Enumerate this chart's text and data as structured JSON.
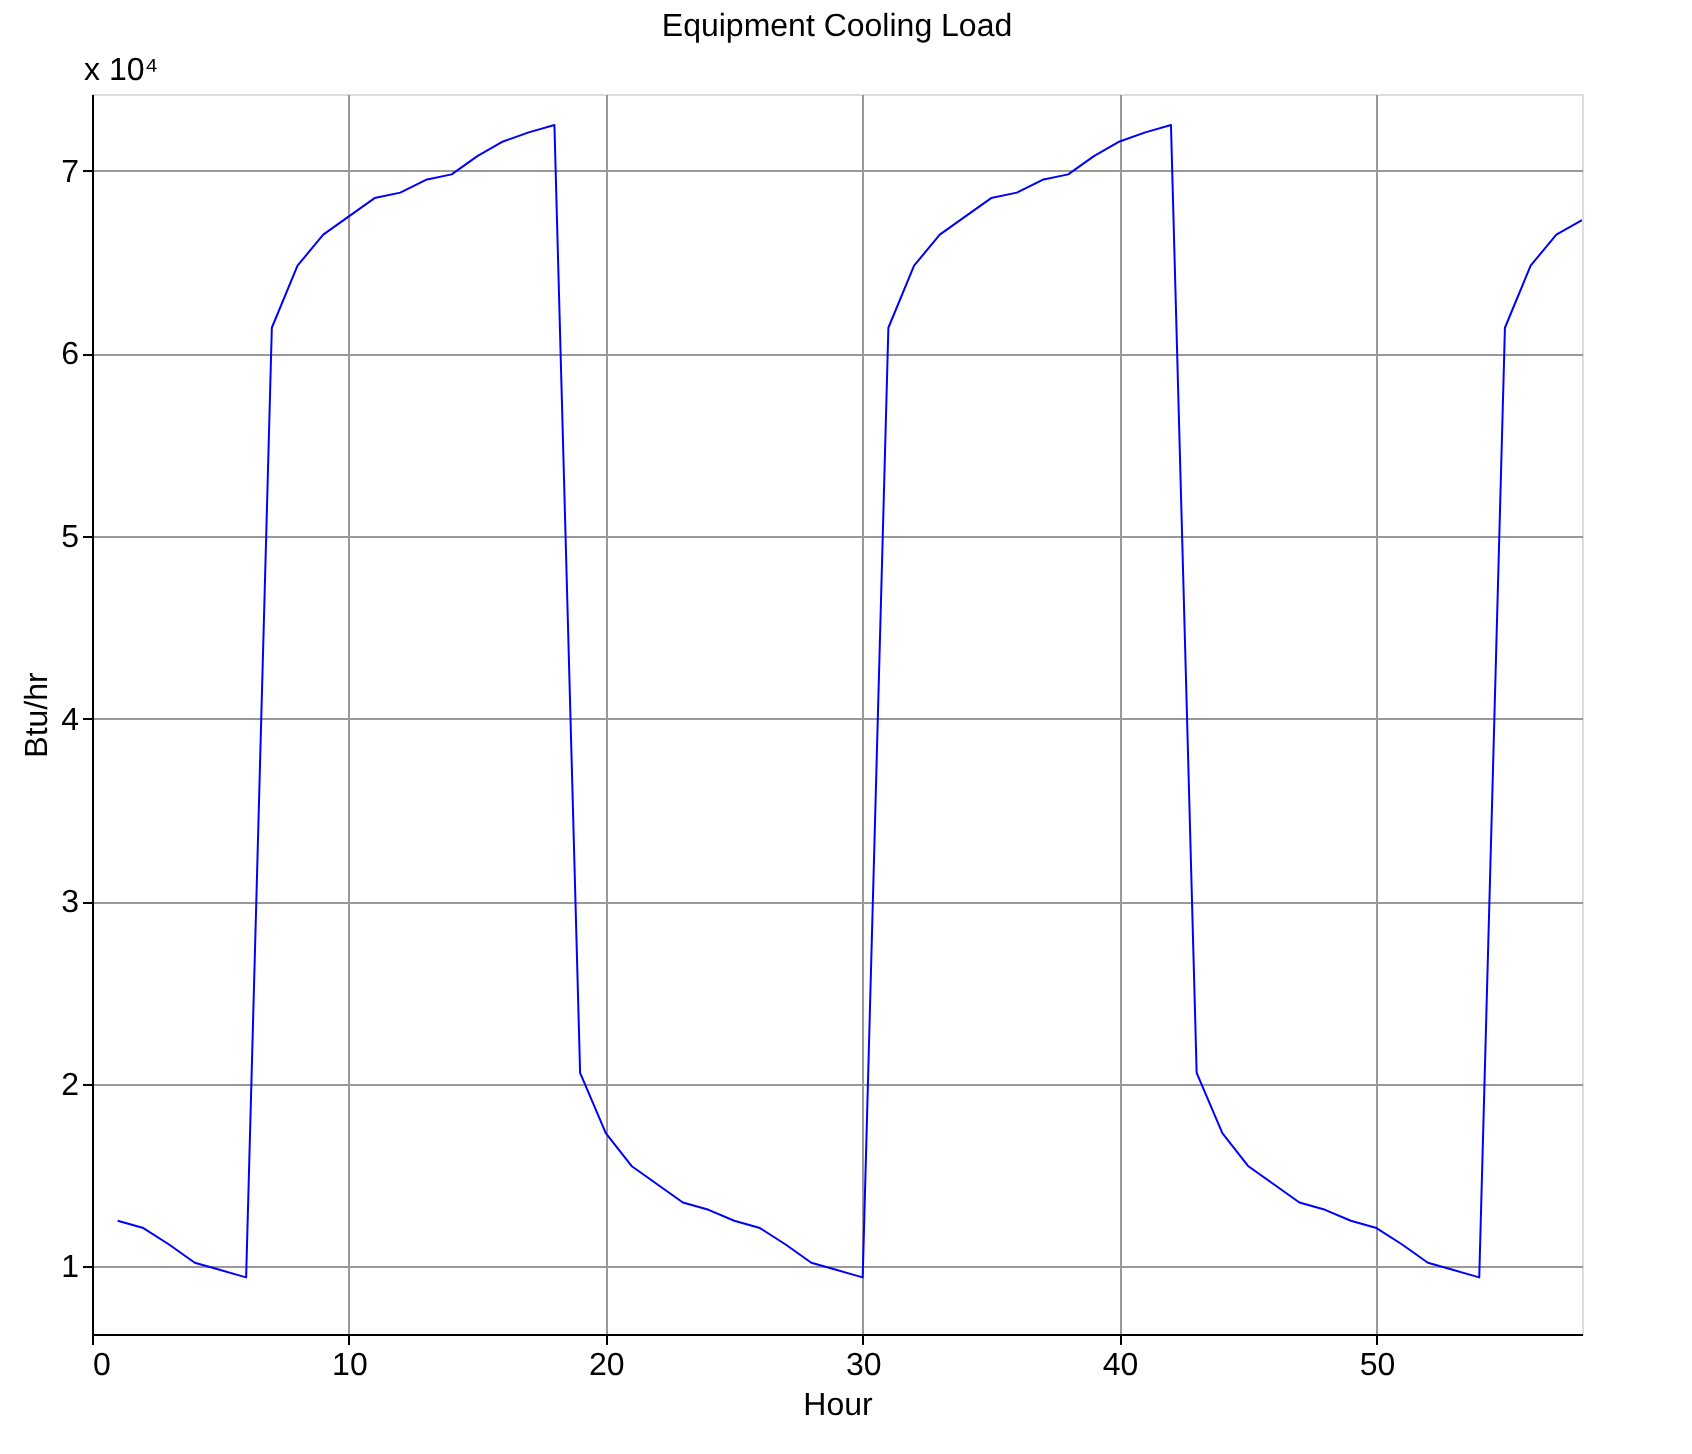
{
  "chart_data": {
    "type": "line",
    "title": "Equipment Cooling Load",
    "xlabel": "Hour",
    "ylabel": "Btu/hr",
    "annotations": [
      "x 10⁴"
    ],
    "x": [
      1,
      2,
      3,
      4,
      5,
      6,
      7,
      8,
      9,
      10,
      11,
      12,
      13,
      14,
      15,
      16,
      17,
      18,
      19,
      20,
      21,
      22,
      23,
      24,
      25,
      26,
      27,
      28,
      29,
      30,
      31,
      32,
      33,
      34,
      35,
      36,
      37,
      38,
      39,
      40,
      41,
      42,
      43,
      44,
      45,
      46,
      47,
      48,
      49,
      50,
      51,
      52,
      53,
      54,
      55,
      56,
      57,
      58
    ],
    "series": [
      {
        "color": "#0000ff",
        "values": [
          1.25,
          1.21,
          1.12,
          1.02,
          0.98,
          0.94,
          6.14,
          6.48,
          6.65,
          6.75,
          6.85,
          6.88,
          6.95,
          6.98,
          7.08,
          7.16,
          7.21,
          7.25,
          2.06,
          1.73,
          1.55,
          1.45,
          1.35,
          1.31,
          1.25,
          1.21,
          1.12,
          1.02,
          0.98,
          0.94,
          6.14,
          6.48,
          6.65,
          6.75,
          6.85,
          6.88,
          6.95,
          6.98,
          7.08,
          7.16,
          7.21,
          7.25,
          2.06,
          1.73,
          1.55,
          1.45,
          1.35,
          1.31,
          1.25,
          1.21,
          1.12,
          1.02,
          0.98,
          0.94,
          6.14,
          6.48,
          6.65,
          6.73
        ]
      }
    ],
    "xlim": [
      0,
      58
    ],
    "xticks": [
      0,
      10,
      20,
      30,
      40,
      50
    ],
    "ylim": [
      0.63,
      7.42
    ],
    "yticks": [
      1,
      2,
      3,
      4,
      5,
      6,
      7
    ],
    "grid": true,
    "marker": "none",
    "line_style": "solid"
  }
}
